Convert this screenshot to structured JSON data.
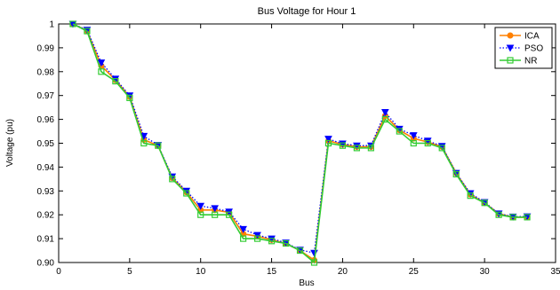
{
  "chart_data": {
    "type": "line",
    "title": "Bus Voltage for Hour 1",
    "xlabel": "Bus",
    "ylabel": "Voltage (pu)",
    "xlim": [
      0,
      35
    ],
    "ylim": [
      0.9,
      1.0
    ],
    "xticks": [
      0,
      5,
      10,
      15,
      20,
      25,
      30,
      35
    ],
    "yticks": [
      0.9,
      0.91,
      0.92,
      0.93,
      0.94,
      0.95,
      0.96,
      0.97,
      0.98,
      0.99,
      1
    ],
    "grid": false,
    "legend_position": "top-right",
    "x": [
      1,
      2,
      3,
      4,
      5,
      6,
      7,
      8,
      9,
      10,
      11,
      12,
      13,
      14,
      15,
      16,
      17,
      18,
      19,
      20,
      21,
      22,
      23,
      24,
      25,
      26,
      27,
      28,
      29,
      30,
      31,
      32,
      33
    ],
    "series": [
      {
        "name": "ICA",
        "color": "#ff8000",
        "marker": "circle",
        "line_style": "solid",
        "values": [
          1.0,
          0.9972,
          0.9825,
          0.9765,
          0.9695,
          0.9515,
          0.949,
          0.9355,
          0.9295,
          0.922,
          0.922,
          0.921,
          0.912,
          0.911,
          0.9095,
          0.908,
          0.905,
          0.901,
          0.951,
          0.9495,
          0.9485,
          0.9485,
          0.9615,
          0.9555,
          0.952,
          0.9505,
          0.9485,
          0.9375,
          0.9285,
          0.925,
          0.9205,
          0.919,
          0.919
        ]
      },
      {
        "name": "PSO",
        "color": "#0000ff",
        "marker": "triangle-down",
        "line_style": "dotted",
        "values": [
          1.0,
          0.9975,
          0.9838,
          0.977,
          0.97,
          0.953,
          0.9492,
          0.936,
          0.93,
          0.9237,
          0.9227,
          0.9213,
          0.914,
          0.9115,
          0.91,
          0.9083,
          0.9053,
          0.904,
          0.9518,
          0.9498,
          0.949,
          0.949,
          0.963,
          0.956,
          0.9533,
          0.951,
          0.9488,
          0.9375,
          0.929,
          0.9253,
          0.9205,
          0.9192,
          0.9193
        ]
      },
      {
        "name": "NR",
        "color": "#33cc33",
        "marker": "square",
        "line_style": "solid",
        "values": [
          1.0,
          0.997,
          0.98,
          0.976,
          0.969,
          0.95,
          0.949,
          0.935,
          0.929,
          0.92,
          0.92,
          0.92,
          0.91,
          0.91,
          0.909,
          0.908,
          0.905,
          0.9,
          0.95,
          0.949,
          0.948,
          0.948,
          0.96,
          0.955,
          0.95,
          0.95,
          0.948,
          0.937,
          0.928,
          0.925,
          0.92,
          0.919,
          0.919
        ]
      }
    ]
  }
}
